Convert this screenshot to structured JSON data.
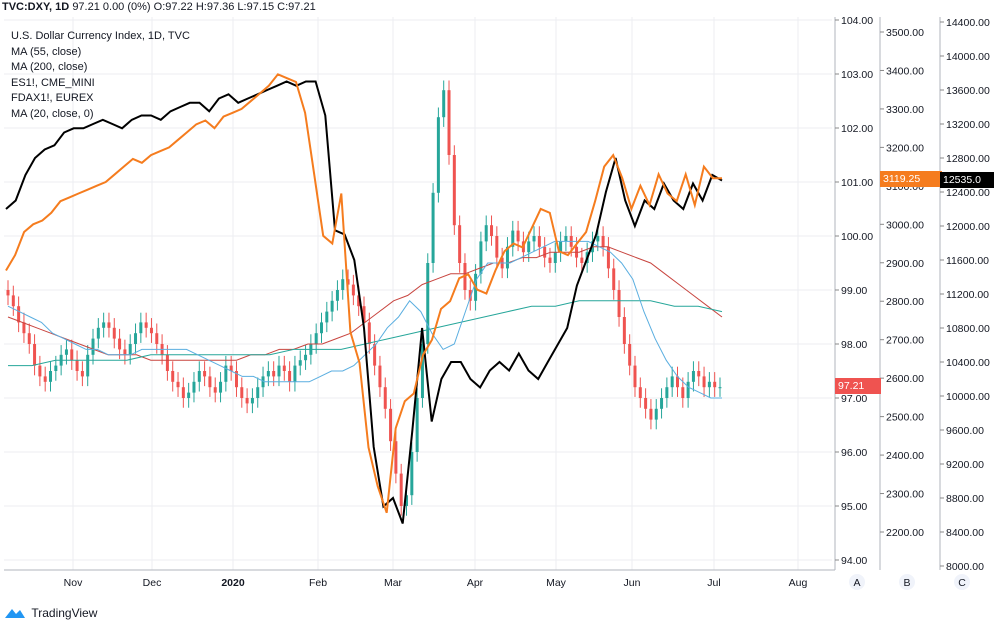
{
  "header": {
    "symbol": "TVC:DXY, 1D",
    "quote": "97.21 0.00 (0%) O:97.22 H:97.36 L:97.15 C:97.21"
  },
  "legend": [
    "U.S. Dollar Currency Index, 1D, TVC",
    "MA (55, close)",
    "MA (200, close)",
    "ES1!, CME_MINI",
    "FDAX1!, EUREX",
    "MA (20, close, 0)"
  ],
  "footer": {
    "brand": "TradingView"
  },
  "axis_labels": {
    "a": "A",
    "b": "B",
    "c": "C"
  },
  "badges": {
    "dxy": "97.21",
    "es": "3119.25",
    "fdax": "12535.0"
  },
  "colors": {
    "candle_up": "#26a69a",
    "candle_down": "#ef5350",
    "ma55": "#5aaee0",
    "ma200": "#c8453f",
    "ma20": "#26a69a",
    "es": "#f57c1e",
    "fdax": "#000000"
  },
  "chart_data": {
    "type": "line",
    "x_ticks": [
      "Nov",
      "Dec",
      "2020",
      "Feb",
      "Mar",
      "Apr",
      "May",
      "Jun",
      "Jul",
      "Aug"
    ],
    "axes": {
      "A": {
        "series": "DXY",
        "ticks": [
          "104.00",
          "103.00",
          "102.00",
          "101.00",
          "100.00",
          "99.00",
          "98.00",
          "97.00",
          "96.00",
          "95.00",
          "94.00"
        ],
        "ylim": [
          94,
          104
        ]
      },
      "B": {
        "series": "ES1!",
        "ticks": [
          "3500.00",
          "3400.00",
          "3300.00",
          "3200.00",
          "3100.00",
          "3000.00",
          "2900.00",
          "2800.00",
          "2700.00",
          "2600.00",
          "2500.00",
          "2400.00",
          "2300.00",
          "2200.00"
        ],
        "ylim": [
          2120,
          3530
        ]
      },
      "C": {
        "series": "FDAX1!",
        "ticks": [
          "14400.00",
          "14000.00",
          "13600.00",
          "13200.00",
          "12800.00",
          "12400.00",
          "12000.00",
          "11600.00",
          "11200.00",
          "10800.00",
          "10400.00",
          "10000.00",
          "9600.00",
          "9200.00",
          "8800.00",
          "8400.00",
          "8000.00"
        ],
        "ylim": [
          7980,
          14420
        ]
      }
    },
    "series_dxy_close": [
      98.9,
      98.7,
      98.4,
      98.2,
      98.0,
      97.6,
      97.4,
      97.3,
      97.5,
      97.6,
      97.8,
      97.9,
      97.7,
      97.5,
      97.4,
      97.8,
      98.1,
      98.3,
      98.4,
      98.3,
      98.1,
      97.9,
      97.8,
      98.0,
      98.2,
      98.4,
      98.3,
      98.2,
      98.0,
      97.8,
      97.5,
      97.3,
      97.2,
      97.0,
      97.1,
      97.3,
      97.5,
      97.4,
      97.2,
      97.1,
      97.3,
      97.6,
      97.5,
      97.2,
      97.0,
      96.9,
      97.0,
      97.2,
      97.4,
      97.5,
      97.4,
      97.6,
      97.5,
      97.3,
      97.6,
      97.7,
      97.8,
      98.0,
      98.2,
      98.4,
      98.6,
      98.8,
      99.0,
      99.2,
      99.1,
      98.9,
      98.7,
      98.4,
      98.0,
      97.6,
      97.2,
      96.8,
      96.2,
      95.6,
      95.0,
      95.2,
      96.0,
      97.0,
      98.0,
      99.5,
      100.8,
      102.2,
      102.7,
      101.5,
      100.2,
      99.5,
      99.0,
      98.8,
      99.3,
      99.9,
      100.2,
      100.0,
      99.6,
      99.4,
      99.8,
      100.1,
      99.9,
      99.7,
      99.9,
      100.0,
      99.8,
      99.6,
      99.5,
      99.7,
      99.9,
      100.0,
      99.8,
      99.6,
      99.5,
      99.7,
      99.9,
      100.0,
      99.8,
      99.4,
      99.0,
      98.5,
      98.0,
      97.6,
      97.2,
      97.0,
      96.8,
      96.6,
      96.8,
      97.0,
      97.2,
      97.4,
      97.2,
      97.0,
      97.3,
      97.5,
      97.4,
      97.2,
      97.3,
      97.2,
      97.2
    ],
    "series_ma55": [
      98.7,
      98.6,
      98.5,
      98.4,
      98.2,
      98.1,
      98.0,
      97.9,
      97.9,
      97.8,
      97.8,
      97.8,
      97.9,
      97.9,
      97.9,
      97.9,
      97.9,
      97.8,
      97.7,
      97.6,
      97.5,
      97.4,
      97.4,
      97.3,
      97.3,
      97.3,
      97.3,
      97.3,
      97.4,
      97.5,
      97.5,
      97.6,
      97.8,
      98.0,
      98.3,
      98.5,
      98.8,
      98.6,
      98.2,
      97.9,
      98.0,
      98.6,
      99.2,
      99.5,
      99.5,
      99.5,
      99.6,
      99.7,
      99.8,
      99.9,
      99.9,
      99.9,
      99.9,
      99.8,
      99.7,
      99.5,
      99.2,
      98.6,
      98.1,
      97.7,
      97.4,
      97.2,
      97.1,
      97.0,
      97.0
    ],
    "series_ma200": [
      98.5,
      98.4,
      98.3,
      98.2,
      98.1,
      98.0,
      97.9,
      97.8,
      97.8,
      97.8,
      97.7,
      97.7,
      97.7,
      97.7,
      97.7,
      97.7,
      97.7,
      97.8,
      97.8,
      97.9,
      97.9,
      98.0,
      98.0,
      98.1,
      98.2,
      98.4,
      98.6,
      98.8,
      98.9,
      99.1,
      99.2,
      99.3,
      99.3,
      99.4,
      99.5,
      99.5,
      99.6,
      99.6,
      99.7,
      99.7,
      99.7,
      99.8,
      99.8,
      99.7,
      99.6,
      99.5,
      99.3,
      99.1,
      98.9,
      98.7,
      98.5
    ],
    "series_ma20_long": [
      97.6,
      97.6,
      97.7,
      97.7,
      97.7,
      97.7,
      97.8,
      97.8,
      97.8,
      97.8,
      97.8,
      97.8,
      97.9,
      97.9,
      97.9,
      98.0,
      98.1,
      98.2,
      98.3,
      98.4,
      98.5,
      98.6,
      98.7,
      98.7,
      98.8,
      98.8,
      98.8,
      98.8,
      98.7,
      98.7,
      98.6
    ],
    "series_es": [
      2880,
      2920,
      2980,
      3000,
      3010,
      3030,
      3060,
      3070,
      3080,
      3090,
      3100,
      3110,
      3130,
      3150,
      3170,
      3160,
      3180,
      3190,
      3200,
      3220,
      3240,
      3260,
      3270,
      3250,
      3280,
      3290,
      3300,
      3320,
      3340,
      3360,
      3390,
      3380,
      3370,
      3290,
      3130,
      2970,
      2950,
      3080,
      2720,
      2640,
      2420,
      2320,
      2250,
      2470,
      2540,
      2560,
      2660,
      2700,
      2780,
      2800,
      2860,
      2870,
      2830,
      2820,
      2880,
      2930,
      2950,
      2940,
      2990,
      3040,
      3030,
      2930,
      2920,
      2950,
      2980,
      3060,
      3150,
      3180,
      3120,
      3040,
      3100,
      3050,
      3130,
      3080,
      3060,
      3130,
      3050,
      3150,
      3120,
      3120
    ],
    "series_fdax": [
      12200,
      12300,
      12600,
      12800,
      12900,
      12950,
      13100,
      13150,
      13150,
      13200,
      13250,
      13200,
      13150,
      13250,
      13300,
      13300,
      13250,
      13350,
      13400,
      13450,
      13450,
      13350,
      13500,
      13550,
      13450,
      13500,
      13550,
      13600,
      13650,
      13700,
      13650,
      13700,
      13700,
      13300,
      11950,
      11900,
      11600,
      10800,
      9400,
      8700,
      8800,
      8500,
      9600,
      10800,
      9700,
      10200,
      10400,
      10400,
      10200,
      10100,
      10300,
      10400,
      10300,
      10500,
      10300,
      10200,
      10400,
      10600,
      10800,
      11300,
      11600,
      11900,
      12400,
      12800,
      12300,
      12000,
      12300,
      12200,
      12500,
      12300,
      12200,
      12500,
      12300,
      12600,
      12535
    ]
  }
}
